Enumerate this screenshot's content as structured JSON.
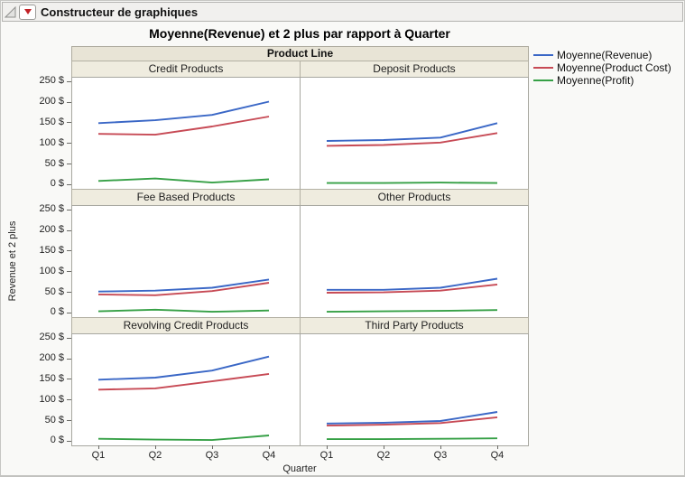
{
  "app": {
    "outline_title": "Constructeur de graphiques"
  },
  "chart_data": {
    "type": "line",
    "title": "Moyenne(Revenue) et 2 plus par rapport à Quarter",
    "facet_header": "Product Line",
    "xlabel": "Quarter",
    "ylabel": "Revenue et 2 plus",
    "categories": [
      "Q1",
      "Q2",
      "Q3",
      "Q4"
    ],
    "ylim": [
      0,
      250
    ],
    "y_tick_values": [
      250,
      200,
      150,
      100,
      50,
      0
    ],
    "y_tick_labels": [
      "250 $",
      "200 $",
      "150 $",
      "100 $",
      "50 $",
      "0 $"
    ],
    "grid": false,
    "legend_position": "right",
    "legend": [
      {
        "label": "Moyenne(Revenue)",
        "color": "#3a67c6"
      },
      {
        "label": "Moyenne(Product Cost)",
        "color": "#c74a55"
      },
      {
        "label": "Moyenne(Profit)",
        "color": "#36a046"
      }
    ],
    "panels": [
      {
        "label": "Credit Products",
        "series": [
          {
            "name": "Moyenne(Revenue)",
            "values": [
              148,
              155,
              168,
              200
            ]
          },
          {
            "name": "Moyenne(Product Cost)",
            "values": [
              122,
              120,
              140,
              164
            ]
          },
          {
            "name": "Moyenne(Profit)",
            "values": [
              8,
              14,
              4,
              12
            ]
          }
        ]
      },
      {
        "label": "Deposit Products",
        "series": [
          {
            "name": "Moyenne(Revenue)",
            "values": [
              105,
              107,
              113,
              148
            ]
          },
          {
            "name": "Moyenne(Product Cost)",
            "values": [
              93,
              95,
              101,
              124
            ]
          },
          {
            "name": "Moyenne(Profit)",
            "values": [
              3,
              3,
              4,
              3
            ]
          }
        ]
      },
      {
        "label": "Fee Based Products",
        "series": [
          {
            "name": "Moyenne(Revenue)",
            "values": [
              51,
              53,
              60,
              80
            ]
          },
          {
            "name": "Moyenne(Product Cost)",
            "values": [
              44,
              42,
              52,
              72
            ]
          },
          {
            "name": "Moyenne(Profit)",
            "values": [
              3,
              7,
              2,
              5
            ]
          }
        ]
      },
      {
        "label": "Other Products",
        "series": [
          {
            "name": "Moyenne(Revenue)",
            "values": [
              55,
              55,
              60,
              82
            ]
          },
          {
            "name": "Moyenne(Product Cost)",
            "values": [
              48,
              49,
              53,
              68
            ]
          },
          {
            "name": "Moyenne(Profit)",
            "values": [
              2,
              3,
              4,
              6
            ]
          }
        ]
      },
      {
        "label": "Revolving Credit Products",
        "series": [
          {
            "name": "Moyenne(Revenue)",
            "values": [
              148,
              153,
              170,
              204
            ]
          },
          {
            "name": "Moyenne(Product Cost)",
            "values": [
              124,
              127,
              144,
              162
            ]
          },
          {
            "name": "Moyenne(Profit)",
            "values": [
              5,
              3,
              2,
              13
            ]
          }
        ]
      },
      {
        "label": "Third Party Products",
        "series": [
          {
            "name": "Moyenne(Revenue)",
            "values": [
              42,
              44,
              48,
              70
            ]
          },
          {
            "name": "Moyenne(Product Cost)",
            "values": [
              37,
              39,
              43,
              57
            ]
          },
          {
            "name": "Moyenne(Profit)",
            "values": [
              4,
              4,
              5,
              6
            ]
          }
        ]
      }
    ]
  }
}
